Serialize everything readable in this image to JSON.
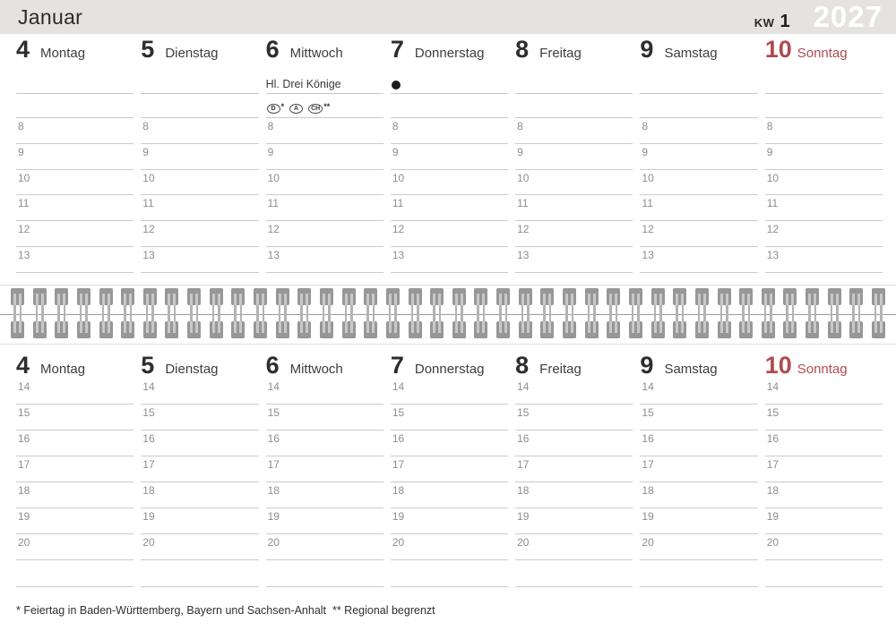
{
  "header": {
    "month": "Januar",
    "week_label": "KW",
    "week_number": "1",
    "year": "2027"
  },
  "days": [
    {
      "num": "4",
      "name": "Montag"
    },
    {
      "num": "5",
      "name": "Dienstag"
    },
    {
      "num": "6",
      "name": "Mittwoch",
      "holiday": "Hl. Drei Könige",
      "badges": [
        {
          "code": "D",
          "mark": "*"
        },
        {
          "code": "A",
          "mark": ""
        },
        {
          "code": "CH",
          "mark": "**"
        }
      ]
    },
    {
      "num": "7",
      "name": "Donnerstag",
      "moon": "new-moon"
    },
    {
      "num": "8",
      "name": "Freitag"
    },
    {
      "num": "9",
      "name": "Samstag"
    },
    {
      "num": "10",
      "name": "Sonntag",
      "highlight": true
    }
  ],
  "morning_hours": [
    "8",
    "9",
    "10",
    "11",
    "12",
    "13"
  ],
  "afternoon_hours": [
    "14",
    "15",
    "16",
    "17",
    "18",
    "19",
    "20"
  ],
  "footnote": "* Feiertag in Baden-Württemberg, Bayern und Sachsen-Anhalt  ** Regional begrenzt",
  "colors": {
    "sunday_red": "#b04b50",
    "header_bar": "#e4e3e0",
    "year_text": "#ffffff"
  }
}
